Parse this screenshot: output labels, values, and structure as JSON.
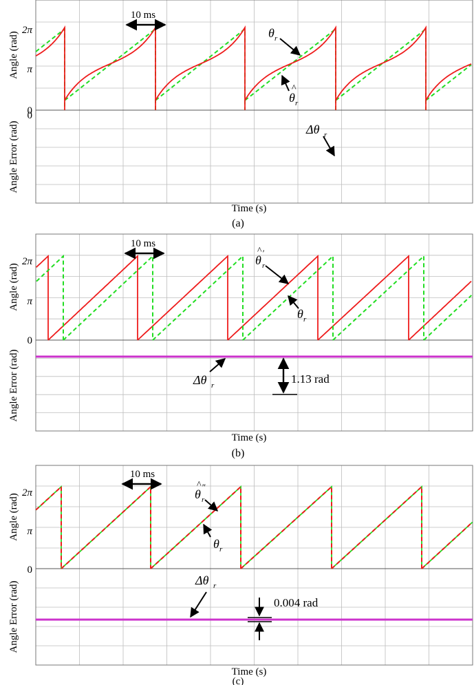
{
  "figure": {
    "panels": [
      {
        "id": "a",
        "caption": "(a)",
        "angle_ylabel": "Angle (rad)",
        "error_ylabel": "Angle Error (rad)",
        "xlabel": "Time (s)",
        "angle_ticks": [
          "2π",
          "π",
          "0"
        ],
        "error_top_tick": "0",
        "period_label": "10 ms",
        "annotations": [
          {
            "id": "a-theta",
            "text": "θ",
            "sub": "r",
            "accent": ""
          },
          {
            "id": "a-thetahat",
            "text": "θ",
            "sub": "r",
            "accent": "hat"
          },
          {
            "id": "a-delta",
            "text": "Δθ",
            "sub": "r",
            "accent": ""
          }
        ]
      },
      {
        "id": "b",
        "caption": "(b)",
        "angle_ylabel": "Angle (rad)",
        "error_ylabel": "Angle Error (rad)",
        "xlabel": "Time (s)",
        "angle_ticks": [
          "2π",
          "π",
          "0"
        ],
        "error_top_tick": "",
        "period_label": "10 ms",
        "offset_label": "1.13 rad",
        "annotations": [
          {
            "id": "b-thetahat",
            "text": "θ",
            "sub": "r",
            "accent": "hatprime"
          },
          {
            "id": "b-theta",
            "text": "θ",
            "sub": "r",
            "accent": ""
          },
          {
            "id": "b-delta",
            "text": "Δθ",
            "sub": "r",
            "accent": ""
          }
        ]
      },
      {
        "id": "c",
        "caption": "(c)",
        "angle_ylabel": "Angle (rad)",
        "error_ylabel": "Angle Error (rad)",
        "xlabel": "Time (s)",
        "angle_ticks": [
          "2π",
          "π",
          "0"
        ],
        "error_top_tick": "",
        "period_label": "10 ms",
        "offset_label": "0.004 rad",
        "annotations": [
          {
            "id": "c-thetahat",
            "text": "θ",
            "sub": "r",
            "accent": "hatdprime"
          },
          {
            "id": "c-theta",
            "text": "θ",
            "sub": "r",
            "accent": ""
          },
          {
            "id": "c-delta",
            "text": "Δθ",
            "sub": "r",
            "accent": ""
          }
        ]
      }
    ]
  },
  "chart_data": [
    {
      "panel": "a",
      "type": "line",
      "xlabel": "Time (s)",
      "ylabel": "Angle (rad)",
      "ylim": [
        0,
        6.2832
      ],
      "period_ms": 10,
      "series": [
        {
          "name": "θr",
          "color": "#ee1c1c",
          "style": "solid",
          "shape": "distorted sawtooth"
        },
        {
          "name": "θ̂r",
          "color": "#22dd22",
          "style": "dashed",
          "shape": "linear sawtooth"
        }
      ]
    },
    {
      "panel": "a",
      "type": "line",
      "xlabel": "Time (s)",
      "ylabel": "Angle Error (rad)",
      "series": [
        {
          "name": "Δθr",
          "color": "#cc33cc",
          "style": "solid",
          "shape": "square-like periodic error, value 0 at top"
        }
      ]
    },
    {
      "panel": "b",
      "type": "line",
      "xlabel": "Time (s)",
      "ylabel": "Angle (rad)",
      "ylim": [
        0,
        6.2832
      ],
      "period_ms": 10,
      "series": [
        {
          "name": "θ̂′r",
          "color": "#ee1c1c",
          "style": "solid",
          "shape": "linear sawtooth"
        },
        {
          "name": "θr",
          "color": "#22dd22",
          "style": "dashed",
          "shape": "linear sawtooth, lagging by 1.13 rad"
        }
      ]
    },
    {
      "panel": "b",
      "type": "line",
      "xlabel": "Time (s)",
      "ylabel": "Angle Error (rad)",
      "series": [
        {
          "name": "Δθr",
          "color": "#cc33cc",
          "style": "solid",
          "constant_offset_rad": 1.13
        }
      ]
    },
    {
      "panel": "c",
      "type": "line",
      "xlabel": "Time (s)",
      "ylabel": "Angle (rad)",
      "ylim": [
        0,
        6.2832
      ],
      "period_ms": 10,
      "series": [
        {
          "name": "θ̂″r",
          "color": "#ee1c1c",
          "style": "solid",
          "shape": "linear sawtooth"
        },
        {
          "name": "θr",
          "color": "#22dd22",
          "style": "dashed",
          "shape": "linear sawtooth, overlapping"
        }
      ]
    },
    {
      "panel": "c",
      "type": "line",
      "xlabel": "Time (s)",
      "ylabel": "Angle Error (rad)",
      "series": [
        {
          "name": "Δθr",
          "color": "#cc33cc",
          "style": "solid",
          "constant_offset_rad": 0.004
        }
      ]
    }
  ]
}
